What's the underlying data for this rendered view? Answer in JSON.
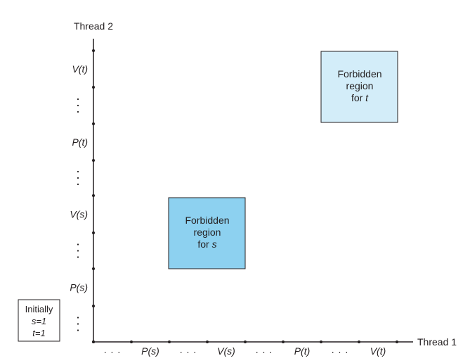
{
  "axes": {
    "y_title": "Thread 2",
    "x_title": "Thread 1"
  },
  "x_ticks": [
    "...",
    "P(s)",
    "...",
    "V(s)",
    "...",
    "P(t)",
    "...",
    "V(t)"
  ],
  "y_ticks": [
    "...",
    "P(s)",
    "...",
    "V(s)",
    "...",
    "P(t)",
    "...",
    "V(t)"
  ],
  "regions": [
    {
      "lines": [
        "Forbidden",
        "region",
        "for "
      ],
      "var": "s",
      "fill": "#8dd1f0"
    },
    {
      "lines": [
        "Forbidden",
        "region",
        "for "
      ],
      "var": "t",
      "fill": "#d3edf9"
    }
  ],
  "initial": {
    "line1": "Initially",
    "line2": "s=1",
    "line3": "t=1"
  },
  "colors": {
    "axis": "#231f20",
    "region_s": "#8dd1f0",
    "region_t": "#d3edf9"
  }
}
